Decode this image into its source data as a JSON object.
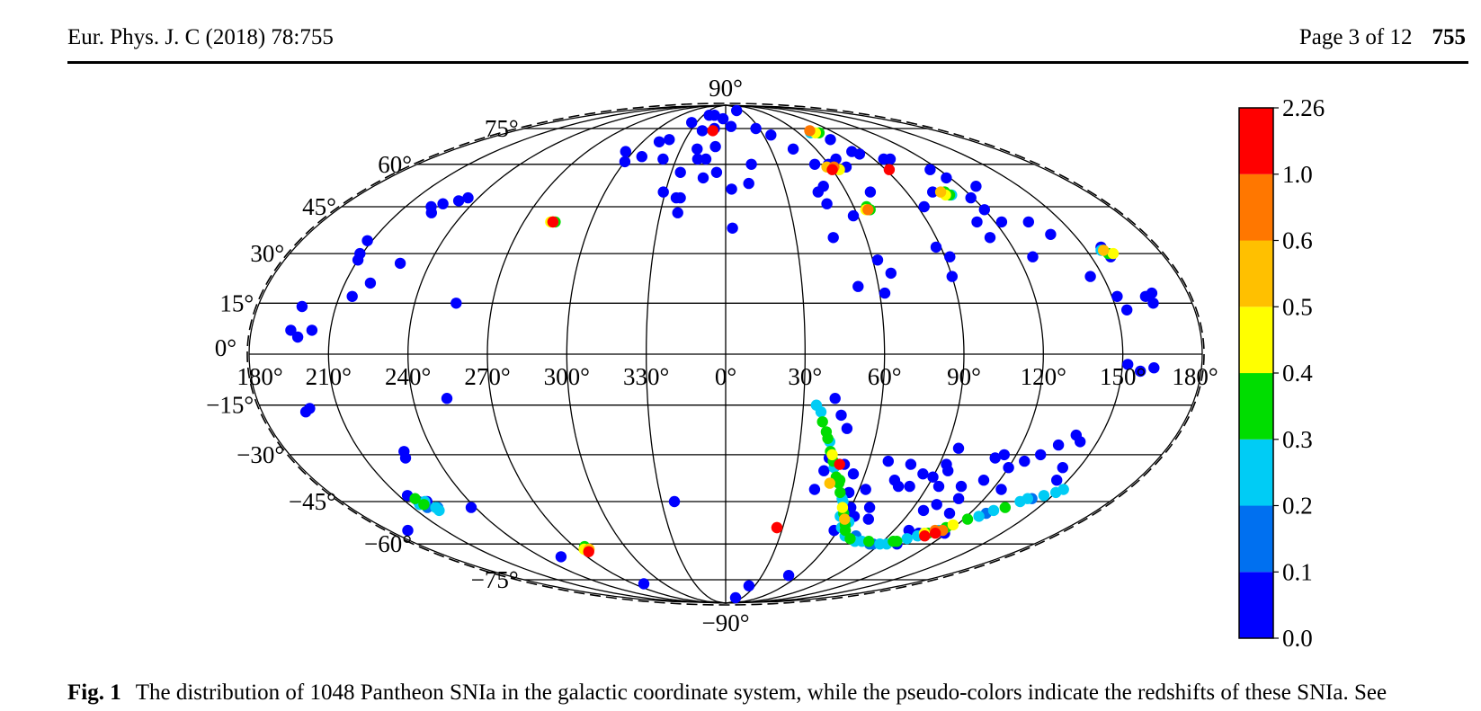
{
  "header": {
    "journal": "Eur. Phys. J. C (2018) 78:755",
    "page_info": "Page 3 of 12",
    "page_number": "755"
  },
  "caption": {
    "label": "Fig. 1",
    "text": "The distribution of 1048 Pantheon SNIa in the galactic coordinate system, while the pseudo-colors indicate the redshifts of these SNIa. See"
  },
  "colors": {
    "bins": [
      "#0000ff",
      "#0070f0",
      "#00ccf5",
      "#00dd00",
      "#ffff00",
      "#ffc000",
      "#ff7700",
      "#ff0000"
    ]
  },
  "chart_data": {
    "type": "scatter",
    "projection": "mollweide",
    "xlabel": "",
    "ylabel": "",
    "lon_tick_labels": [
      "180°",
      "210°",
      "240°",
      "270°",
      "300°",
      "330°",
      "0°",
      "30°",
      "60°",
      "90°",
      "120°",
      "150°",
      "180°"
    ],
    "lat_tick_labels": [
      "90°",
      "75°",
      "60°",
      "45°",
      "30°",
      "15°",
      "0°",
      "−15°",
      "−30°",
      "−45°",
      "−60°",
      "−75°",
      "−90°"
    ],
    "colorbar": {
      "boundaries": [
        0.0,
        0.1,
        0.2,
        0.3,
        0.4,
        0.5,
        0.6,
        1.0,
        2.26
      ],
      "tick_labels": [
        "0.0",
        "0.1",
        "0.2",
        "0.3",
        "0.4",
        "0.5",
        "0.6",
        "1.0",
        "2.26"
      ]
    },
    "points": [
      [
        -163,
        14,
        0.05
      ],
      [
        -165,
        7,
        0.05
      ],
      [
        -162,
        5,
        0.05
      ],
      [
        -157,
        7,
        0.05
      ],
      [
        -152,
        34,
        0.05
      ],
      [
        -151,
        30,
        0.05
      ],
      [
        -150,
        28,
        0.05
      ],
      [
        -145,
        17,
        0.05
      ],
      [
        -140,
        21,
        0.05
      ],
      [
        -138,
        45,
        0.05
      ],
      [
        -135,
        43,
        0.05
      ],
      [
        -134,
        46,
        0.05
      ],
      [
        -132,
        27,
        0.05
      ],
      [
        -128,
        47,
        0.05
      ],
      [
        -125,
        48,
        0.05
      ],
      [
        -104,
        15,
        0.05
      ],
      [
        -163,
        -17,
        0.05
      ],
      [
        -161,
        -16,
        0.05
      ],
      [
        -133,
        -31,
        0.05
      ],
      [
        -132,
        -29,
        0.05
      ],
      [
        -122,
        -47,
        0.05
      ],
      [
        -107,
        -13,
        0.05
      ],
      [
        -170,
        -55,
        0.05
      ],
      [
        -107,
        -65,
        0.05
      ],
      [
        -80,
        -77,
        0.05
      ],
      [
        -24,
        -45,
        0.05
      ],
      [
        -65,
        65,
        0.05
      ],
      [
        -42,
        70,
        0.05
      ],
      [
        -31,
        50,
        0.05
      ],
      [
        -25,
        57,
        0.05
      ],
      [
        -19,
        66,
        0.05
      ],
      [
        -15,
        82,
        0.05
      ],
      [
        -10,
        75,
        0.05
      ],
      [
        -38,
        62,
        0.05
      ],
      [
        -20,
        74,
        0.05
      ],
      [
        -7,
        67,
        0.05
      ],
      [
        -24,
        48,
        0.05
      ],
      [
        -22,
        48,
        0.05
      ],
      [
        -22,
        43,
        0.05
      ],
      [
        -17,
        62,
        0.05
      ],
      [
        -12,
        55,
        0.05
      ],
      [
        -12,
        62,
        0.05
      ],
      [
        -5,
        57,
        0.05
      ],
      [
        -52,
        63,
        0.05
      ],
      [
        -60,
        61,
        0.05
      ],
      [
        -48,
        69,
        0.05
      ],
      [
        -35,
        78,
        0.05
      ],
      [
        -22,
        82,
        0.05
      ],
      [
        -3,
        80,
        0.05
      ],
      [
        3,
        51,
        0.05
      ],
      [
        3,
        38,
        0.05
      ],
      [
        5,
        76,
        0.05
      ],
      [
        12,
        53,
        0.05
      ],
      [
        15,
        60,
        0.05
      ],
      [
        20,
        85,
        0.05
      ],
      [
        27,
        75,
        0.05
      ],
      [
        36,
        72,
        0.05
      ],
      [
        45,
        66,
        0.05
      ],
      [
        46,
        50,
        0.05
      ],
      [
        46,
        35,
        0.05
      ],
      [
        48,
        46,
        0.05
      ],
      [
        50,
        52,
        0.05
      ],
      [
        52,
        60,
        0.05
      ],
      [
        52,
        20,
        0.05
      ],
      [
        58,
        42,
        0.05
      ],
      [
        60,
        60,
        0.05
      ],
      [
        62,
        18,
        0.05
      ],
      [
        62,
        28,
        0.05
      ],
      [
        66,
        24,
        0.05
      ],
      [
        67,
        62,
        0.05
      ],
      [
        69,
        59,
        0.05
      ],
      [
        72,
        50,
        0.05
      ],
      [
        78,
        70,
        0.05
      ],
      [
        82,
        65,
        0.05
      ],
      [
        85,
        64,
        0.05
      ],
      [
        88,
        32,
        0.05
      ],
      [
        92,
        29,
        0.05
      ],
      [
        90,
        23,
        0.05
      ],
      [
        93,
        45,
        0.05
      ],
      [
        96,
        62,
        0.05
      ],
      [
        100,
        62,
        0.05
      ],
      [
        103,
        50,
        0.05
      ],
      [
        112,
        40,
        0.05
      ],
      [
        113,
        35,
        0.05
      ],
      [
        115,
        58,
        0.05
      ],
      [
        118,
        55,
        0.05
      ],
      [
        119,
        48,
        0.05
      ],
      [
        120,
        44,
        0.05
      ],
      [
        123,
        40,
        0.05
      ],
      [
        126,
        29,
        0.05
      ],
      [
        128,
        52,
        0.05
      ],
      [
        135,
        40,
        0.05
      ],
      [
        140,
        36,
        0.05
      ],
      [
        145,
        23,
        0.05
      ],
      [
        152,
        17,
        0.05
      ],
      [
        154,
        13,
        0.05
      ],
      [
        157,
        32,
        0.05
      ],
      [
        158,
        29,
        0.05
      ],
      [
        163,
        17,
        0.05
      ],
      [
        166,
        18,
        0.05
      ],
      [
        165,
        15,
        0.05
      ],
      [
        152,
        -3,
        0.05
      ],
      [
        157,
        -5,
        0.05
      ],
      [
        162,
        -4,
        0.05
      ],
      [
        42,
        -13,
        0.05
      ],
      [
        45,
        -18,
        0.05
      ],
      [
        48,
        -22,
        0.05
      ],
      [
        43,
        -31,
        0.05
      ],
      [
        50,
        -33,
        0.05
      ],
      [
        55,
        -36,
        0.05
      ],
      [
        56,
        -42,
        0.05
      ],
      [
        58,
        -55,
        0.05
      ],
      [
        60,
        -47,
        0.05
      ],
      [
        62,
        -50,
        0.05
      ],
      [
        63,
        -41,
        0.05
      ],
      [
        64,
        -50,
        0.05
      ],
      [
        68,
        -32,
        0.05
      ],
      [
        69,
        -47,
        0.05
      ],
      [
        72,
        -51,
        0.05
      ],
      [
        74,
        -38,
        0.05
      ],
      [
        77,
        -40,
        0.05
      ],
      [
        78,
        -33,
        0.05
      ],
      [
        82,
        -40,
        0.05
      ],
      [
        85,
        -36,
        0.05
      ],
      [
        90,
        -37,
        0.05
      ],
      [
        93,
        -33,
        0.05
      ],
      [
        95,
        -28,
        0.05
      ],
      [
        95,
        -35,
        0.05
      ],
      [
        95,
        -40,
        0.05
      ],
      [
        96,
        -48,
        0.05
      ],
      [
        98,
        -55,
        0.05
      ],
      [
        100,
        -46,
        0.05
      ],
      [
        105,
        -40,
        0.05
      ],
      [
        108,
        -44,
        0.05
      ],
      [
        110,
        -49,
        0.05
      ],
      [
        112,
        -31,
        0.05
      ],
      [
        113,
        -38,
        0.05
      ],
      [
        115,
        -30,
        0.05
      ],
      [
        120,
        -34,
        0.05
      ],
      [
        125,
        -32,
        0.05
      ],
      [
        130,
        -30,
        0.05
      ],
      [
        135,
        -27,
        0.05
      ],
      [
        140,
        -24,
        0.05
      ],
      [
        143,
        -26,
        0.05
      ],
      [
        143,
        -34,
        0.05
      ],
      [
        145,
        -38,
        0.05
      ],
      [
        124,
        -41,
        0.05
      ],
      [
        119,
        -56,
        0.05
      ],
      [
        105,
        -56,
        0.05
      ],
      [
        100,
        -60,
        0.05
      ],
      [
        42,
        -35,
        0.05
      ],
      [
        40,
        -41,
        0.05
      ],
      [
        52,
        -73,
        0.05
      ],
      [
        18,
        -85,
        0.05
      ],
      [
        24,
        -78,
        0.05
      ],
      [
        -142,
        -46,
        0.04
      ],
      [
        -144,
        -45,
        0.04
      ],
      [
        -146,
        -43,
        0.04
      ],
      [
        -145,
        -46,
        0.24
      ],
      [
        -140,
        -45,
        0.05
      ],
      [
        -144,
        -44,
        0.33
      ],
      [
        -141,
        -45,
        0.28
      ],
      [
        -139,
        -47,
        0.22
      ],
      [
        -143,
        -47,
        0.18
      ],
      [
        -139,
        -48,
        0.25
      ],
      [
        -138,
        -47,
        0.12
      ],
      [
        -143,
        -46,
        0.34
      ],
      [
        -85,
        -62,
        0.33
      ],
      [
        -84,
        -61,
        0.36
      ],
      [
        -86,
        -62,
        0.45
      ],
      [
        -83,
        -62,
        0.55
      ],
      [
        -85,
        -63,
        2.0
      ],
      [
        -77,
        40,
        0.55
      ],
      [
        -78,
        40,
        0.45
      ],
      [
        -76,
        40,
        0.35
      ],
      [
        -77,
        40,
        0.6
      ],
      [
        -77,
        40,
        2.0
      ],
      [
        66,
        44,
        0.62
      ],
      [
        65,
        44,
        0.45
      ],
      [
        67,
        44,
        0.38
      ],
      [
        66,
        45,
        0.32
      ],
      [
        70,
        73,
        0.25
      ],
      [
        74,
        73,
        0.42
      ],
      [
        72,
        74,
        0.62
      ],
      [
        77,
        73,
        0.33
      ],
      [
        58,
        59,
        0.55
      ],
      [
        60,
        58,
        2.0
      ],
      [
        62,
        59,
        0.75
      ],
      [
        64,
        58,
        0.45
      ],
      [
        107,
        50,
        0.5
      ],
      [
        109,
        50,
        0.32
      ],
      [
        111,
        49,
        0.25
      ],
      [
        108,
        49,
        0.45
      ],
      [
        110,
        49,
        0.38
      ],
      [
        156,
        31,
        0.25
      ],
      [
        158,
        30,
        0.35
      ],
      [
        160,
        30,
        0.45
      ],
      [
        157,
        31,
        0.55
      ],
      [
        -11,
        74,
        2.0
      ],
      [
        92,
        58,
        2.0
      ],
      [
        27,
        -54,
        0.7
      ],
      [
        27,
        -54,
        2.0
      ],
      [
        35,
        -15,
        0.22
      ],
      [
        37,
        -17,
        0.27
      ],
      [
        38,
        -20,
        0.31
      ],
      [
        40,
        -23,
        0.32
      ],
      [
        42,
        -26,
        0.29
      ],
      [
        43,
        -29,
        0.33
      ],
      [
        45,
        -32,
        0.34
      ],
      [
        46,
        -34,
        0.22
      ],
      [
        48,
        -37,
        0.35
      ],
      [
        50,
        -39,
        0.38
      ],
      [
        52,
        -42,
        0.33
      ],
      [
        54,
        -44,
        0.26
      ],
      [
        56,
        -47,
        0.42
      ],
      [
        58,
        -49,
        0.32
      ],
      [
        60,
        -51,
        0.55
      ],
      [
        62,
        -53,
        0.33
      ],
      [
        64,
        -55,
        0.38
      ],
      [
        66,
        -57,
        0.26
      ],
      [
        63,
        -52,
        0.27
      ],
      [
        57,
        -50,
        0.22
      ],
      [
        50,
        -38,
        0.33
      ],
      [
        55,
        -45,
        0.22
      ],
      [
        61,
        -54,
        0.23
      ],
      [
        47,
        -33,
        0.24
      ],
      [
        44,
        -30,
        0.42
      ],
      [
        41,
        -25,
        0.32
      ],
      [
        46,
        -39,
        0.56
      ],
      [
        48,
        -33,
        2.0
      ],
      [
        70,
        -58,
        0.35
      ],
      [
        74,
        -59,
        0.22
      ],
      [
        78,
        -59,
        0.25
      ],
      [
        82,
        -59,
        0.36
      ],
      [
        86,
        -60,
        0.15
      ],
      [
        90,
        -60,
        0.22
      ],
      [
        94,
        -60,
        0.28
      ],
      [
        98,
        -59,
        0.33
      ],
      [
        102,
        -58,
        0.22
      ],
      [
        106,
        -57,
        0.25
      ],
      [
        110,
        -56,
        0.35
      ],
      [
        114,
        -55,
        0.23
      ],
      [
        118,
        -53,
        0.45
      ],
      [
        122,
        -51,
        0.32
      ],
      [
        126,
        -50,
        0.25
      ],
      [
        130,
        -48,
        0.22
      ],
      [
        134,
        -47,
        0.35
      ],
      [
        138,
        -45,
        0.22
      ],
      [
        142,
        -44,
        0.18
      ],
      [
        146,
        -43,
        0.22
      ],
      [
        150,
        -42,
        0.25
      ],
      [
        152,
        -41,
        0.28
      ],
      [
        72,
        -57,
        0.15
      ],
      [
        84,
        -60,
        0.12
      ],
      [
        96,
        -59,
        0.32
      ],
      [
        108,
        -56,
        0.42
      ],
      [
        116,
        -54,
        0.3
      ],
      [
        128,
        -49,
        0.15
      ],
      [
        140,
        -44,
        0.25
      ],
      [
        112,
        -55,
        0.9
      ],
      [
        114,
        -56,
        2.0
      ],
      [
        110,
        -57,
        2.0
      ],
      [
        116,
        -55,
        0.7
      ]
    ]
  }
}
